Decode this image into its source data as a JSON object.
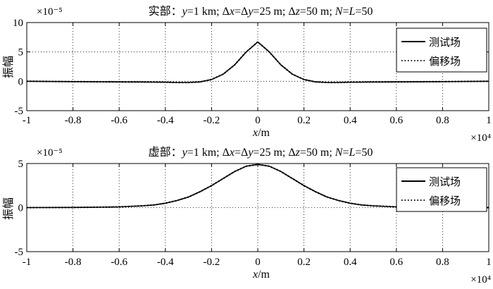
{
  "chart_data": [
    {
      "type": "line",
      "title": "实部：y=1 km; Δx=Δy=25 m; Δz=50 m; N=L=50",
      "title_parts": {
        "prefix": "实部：",
        "v1": "y",
        "t1": "=1 km; Δ",
        "v2": "x",
        "t2": "=Δ",
        "v3": "y",
        "t3": "=25 m; Δ",
        "v4": "z",
        "t4": "=50 m; ",
        "v5": "N",
        "t5": "=",
        "v6": "L",
        "t6": "=50"
      },
      "xlabel": {
        "var": "x",
        "unit": "/m"
      },
      "ylabel": "振幅",
      "xlim": [
        -1,
        1
      ],
      "ylim": [
        -5,
        10
      ],
      "x_multiplier": "×10⁴",
      "y_multiplier": "×10⁻⁵",
      "xticks": [
        -1,
        -0.8,
        -0.6,
        -0.4,
        -0.2,
        0,
        0.2,
        0.4,
        0.6,
        0.8,
        1
      ],
      "xtick_labels": [
        "-1",
        "-0.8",
        "-0.6",
        "-0.4",
        "-0.2",
        "0",
        "0.2",
        "0.4",
        "0.6",
        "0.8",
        "1"
      ],
      "yticks": [
        -5,
        0,
        5,
        10
      ],
      "ytick_labels": [
        "-5",
        "0",
        "5",
        "10"
      ],
      "grid": true,
      "legend_position": "top-right",
      "series": [
        {
          "name": "测试场",
          "style": "solid",
          "x": [
            -1,
            -0.8,
            -0.6,
            -0.5,
            -0.4,
            -0.35,
            -0.3,
            -0.25,
            -0.2,
            -0.15,
            -0.1,
            -0.05,
            0,
            0.05,
            0.1,
            0.15,
            0.2,
            0.25,
            0.3,
            0.35,
            0.4,
            0.5,
            0.6,
            0.8,
            1
          ],
          "values": [
            0,
            -0.05,
            -0.1,
            -0.12,
            -0.15,
            -0.2,
            -0.2,
            -0.1,
            0.3,
            1.2,
            2.8,
            5.0,
            6.7,
            5.0,
            2.8,
            1.2,
            0.3,
            -0.1,
            -0.2,
            -0.2,
            -0.15,
            -0.12,
            -0.1,
            -0.05,
            0
          ]
        },
        {
          "name": "偏移场",
          "style": "dotted",
          "x": [
            -1,
            -0.8,
            -0.6,
            -0.5,
            -0.4,
            -0.35,
            -0.3,
            -0.25,
            -0.2,
            -0.15,
            -0.1,
            -0.05,
            0,
            0.05,
            0.1,
            0.15,
            0.2,
            0.25,
            0.3,
            0.35,
            0.4,
            0.5,
            0.6,
            0.8,
            1
          ],
          "values": [
            0,
            -0.05,
            -0.1,
            -0.12,
            -0.15,
            -0.2,
            -0.2,
            -0.1,
            0.3,
            1.2,
            2.8,
            5.0,
            6.7,
            5.0,
            2.8,
            1.2,
            0.3,
            -0.1,
            -0.2,
            -0.2,
            -0.15,
            -0.12,
            -0.1,
            -0.05,
            0
          ]
        }
      ]
    },
    {
      "type": "line",
      "title": "虚部：y=1 km; Δx=Δy=25 m; Δz=50 m; N=L=50",
      "title_parts": {
        "prefix": "虚部：",
        "v1": "y",
        "t1": "=1 km; Δ",
        "v2": "x",
        "t2": "=Δ",
        "v3": "y",
        "t3": "=25 m; Δ",
        "v4": "z",
        "t4": "=50 m; ",
        "v5": "N",
        "t5": "=",
        "v6": "L",
        "t6": "=50"
      },
      "xlabel": {
        "var": "x",
        "unit": "/m"
      },
      "ylabel": "振幅",
      "xlim": [
        -1,
        1
      ],
      "ylim": [
        -5,
        5
      ],
      "x_multiplier": "×10⁴",
      "y_multiplier": "×10⁻⁵",
      "xticks": [
        -1,
        -0.8,
        -0.6,
        -0.4,
        -0.2,
        0,
        0.2,
        0.4,
        0.6,
        0.8,
        1
      ],
      "xtick_labels": [
        "-1",
        "-0.8",
        "-0.6",
        "-0.4",
        "-0.2",
        "0",
        "0.2",
        "0.4",
        "0.6",
        "0.8",
        "1"
      ],
      "yticks": [
        -5,
        0,
        5
      ],
      "ytick_labels": [
        "-5",
        "0",
        "5"
      ],
      "grid": true,
      "legend_position": "top-right",
      "series": [
        {
          "name": "测试场",
          "style": "solid",
          "x": [
            -1,
            -0.8,
            -0.7,
            -0.6,
            -0.5,
            -0.45,
            -0.4,
            -0.35,
            -0.3,
            -0.25,
            -0.2,
            -0.15,
            -0.1,
            -0.05,
            0,
            0.05,
            0.1,
            0.15,
            0.2,
            0.25,
            0.3,
            0.35,
            0.4,
            0.45,
            0.5,
            0.6,
            0.7,
            0.8,
            1
          ],
          "values": [
            0,
            0.02,
            0.04,
            0.08,
            0.2,
            0.3,
            0.5,
            0.8,
            1.2,
            1.8,
            2.5,
            3.3,
            4.1,
            4.7,
            4.9,
            4.7,
            4.1,
            3.3,
            2.5,
            1.8,
            1.2,
            0.8,
            0.5,
            0.3,
            0.2,
            0.08,
            0.04,
            0.02,
            0
          ]
        },
        {
          "name": "偏移场",
          "style": "dotted",
          "x": [
            -1,
            -0.8,
            -0.7,
            -0.6,
            -0.5,
            -0.45,
            -0.4,
            -0.35,
            -0.3,
            -0.25,
            -0.2,
            -0.15,
            -0.1,
            -0.05,
            0,
            0.05,
            0.1,
            0.15,
            0.2,
            0.25,
            0.3,
            0.35,
            0.4,
            0.45,
            0.5,
            0.6,
            0.7,
            0.8,
            1
          ],
          "values": [
            0,
            0.02,
            0.04,
            0.08,
            0.2,
            0.3,
            0.5,
            0.8,
            1.2,
            1.8,
            2.5,
            3.3,
            4.1,
            4.7,
            4.9,
            4.7,
            4.1,
            3.3,
            2.5,
            1.8,
            1.2,
            0.8,
            0.5,
            0.3,
            0.2,
            0.08,
            0.04,
            0.02,
            0
          ]
        }
      ]
    }
  ]
}
